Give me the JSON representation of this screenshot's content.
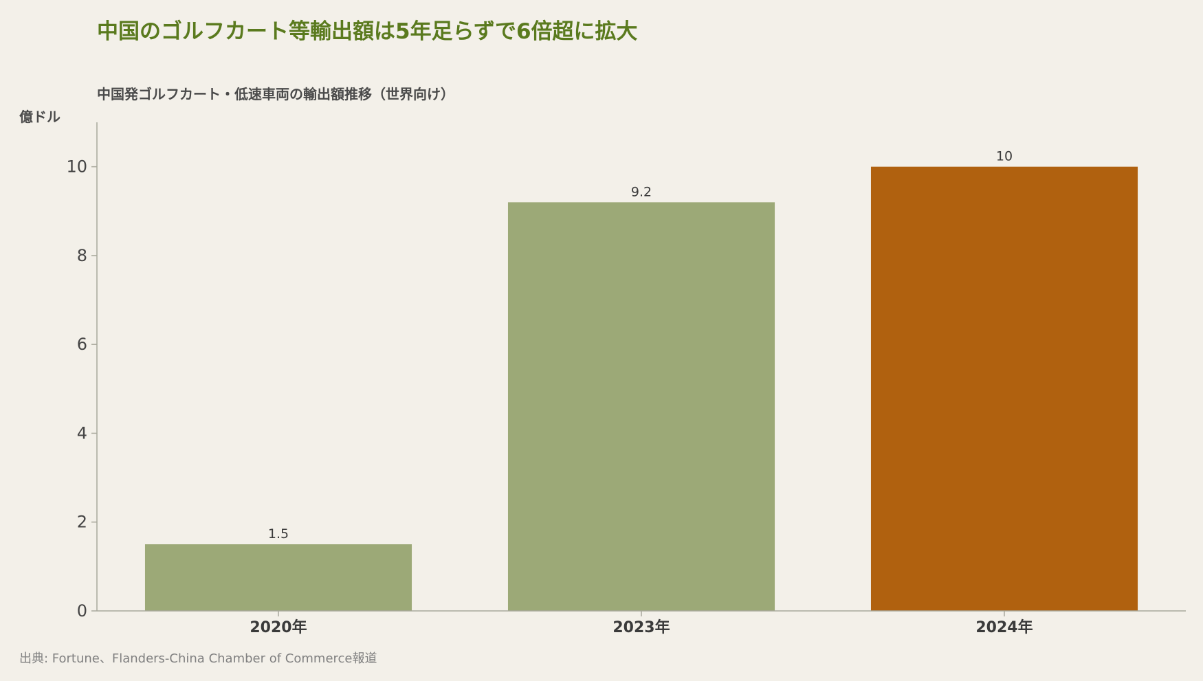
{
  "title": "中国のゴルフカート等輸出額は5年足らずで6倍超に拡大",
  "source": "出典: Fortune、Flanders-China Chamber of Commerce報道",
  "chart_data": {
    "type": "bar",
    "title": "中国発ゴルフカート・低速車両の輸出額推移（世界向け）",
    "ylabel": "億ドル",
    "xlabel": "",
    "categories": [
      "2020年",
      "2023年",
      "2024年"
    ],
    "values": [
      1.5,
      9.2,
      10
    ],
    "value_labels": [
      "1.5",
      "9.2",
      "10"
    ],
    "ylim": [
      0,
      11
    ],
    "yticks": [
      0,
      2,
      4,
      6,
      8,
      10
    ],
    "grid": false,
    "legend": "none",
    "colors": [
      "#9ca977",
      "#9ca977",
      "#b0610f"
    ]
  }
}
